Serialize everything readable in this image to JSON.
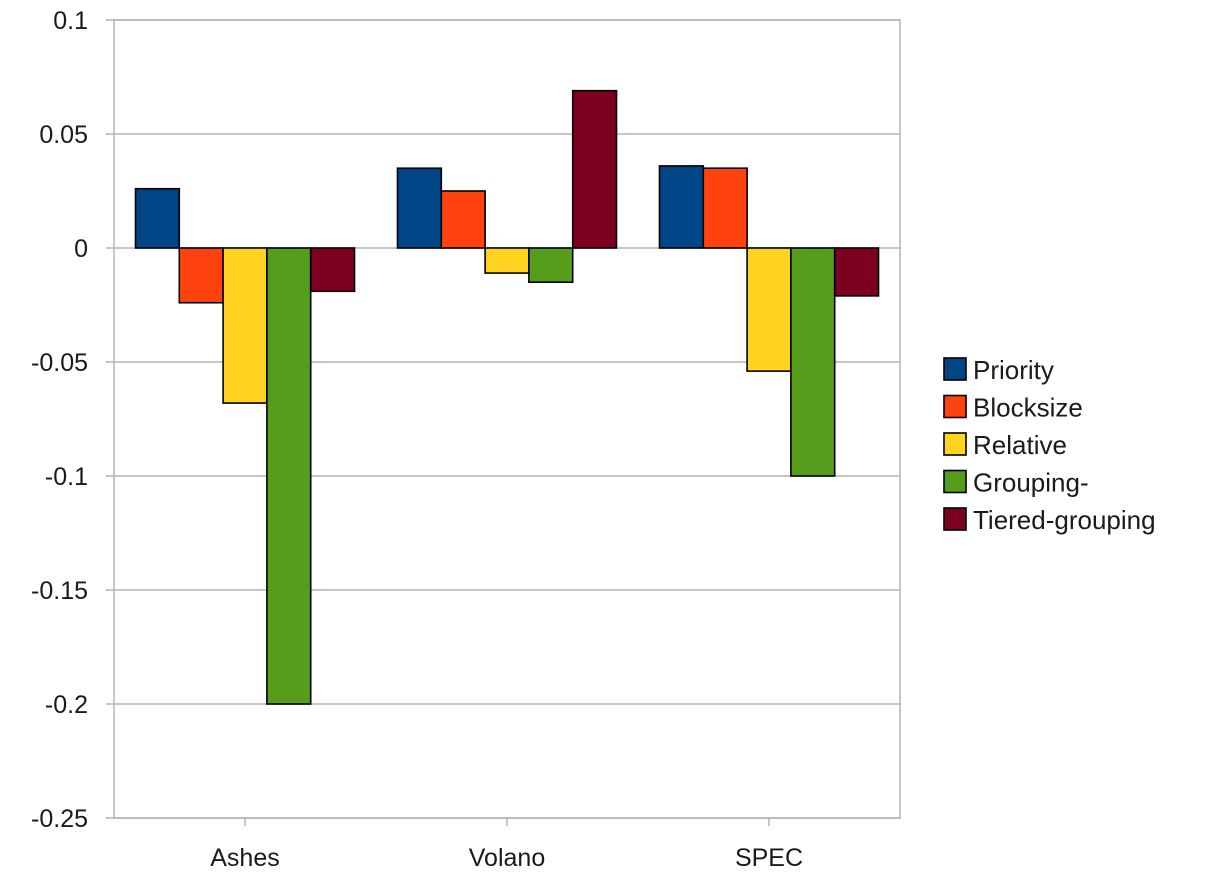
{
  "chart_data": {
    "type": "bar",
    "title": "",
    "xlabel": "",
    "ylabel": "",
    "categories": [
      "Ashes",
      "Volano",
      "SPEC"
    ],
    "series": [
      {
        "name": "Priority",
        "color": "#004586",
        "values": [
          0.026,
          0.035,
          0.036
        ]
      },
      {
        "name": "Blocksize",
        "color": "#ff420e",
        "values": [
          -0.024,
          0.025,
          0.035
        ]
      },
      {
        "name": "Relative",
        "color": "#ffd320",
        "values": [
          -0.068,
          -0.011,
          -0.054
        ]
      },
      {
        "name": "Grouping-",
        "color": "#579d1c",
        "values": [
          -0.2,
          -0.015,
          -0.1
        ]
      },
      {
        "name": "Tiered-grouping",
        "color": "#7e0021",
        "values": [
          -0.019,
          0.069,
          -0.021
        ]
      }
    ],
    "ylim": [
      -0.25,
      0.1
    ],
    "y_ticks": [
      "0.1",
      "0.05",
      "0",
      "-0.05",
      "-0.1",
      "-0.15",
      "-0.2",
      "-0.25"
    ],
    "grid": true,
    "legend_position": "right"
  }
}
